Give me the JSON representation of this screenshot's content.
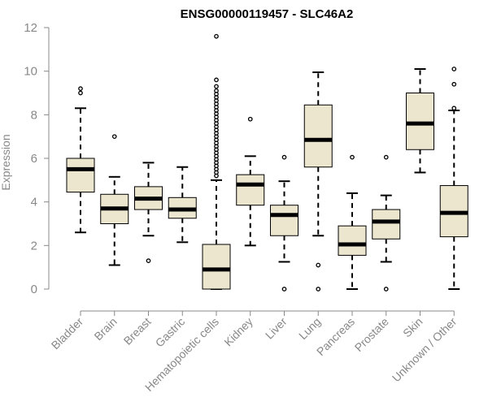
{
  "chart_data": {
    "type": "box",
    "title": "ENSG00000119457 - SLC46A2",
    "xlabel": "",
    "ylabel": "Expression",
    "ylim": [
      0,
      12
    ],
    "yticks": [
      "0",
      "2",
      "4",
      "6",
      "8",
      "10",
      "12"
    ],
    "fill_color": "#ede6cf",
    "axis_color": "#888888",
    "categories": [
      "Bladder",
      "Brain",
      "Breast",
      "Gastric",
      "Hematopoietic cells",
      "Kidney",
      "Liver",
      "Lung",
      "Pancreas",
      "Prostate",
      "Skin",
      "Unknown / Other"
    ],
    "boxes": [
      {
        "name": "Bladder",
        "min": 2.6,
        "q1": 4.45,
        "median": 5.5,
        "q3": 6.0,
        "max": 8.3,
        "outliers": [
          9.0,
          9.2
        ]
      },
      {
        "name": "Brain",
        "min": 1.1,
        "q1": 3.0,
        "median": 3.7,
        "q3": 4.35,
        "max": 5.15,
        "outliers": [
          7.0
        ]
      },
      {
        "name": "Breast",
        "min": 2.45,
        "q1": 3.65,
        "median": 4.15,
        "q3": 4.7,
        "max": 5.8,
        "outliers": [
          1.3
        ]
      },
      {
        "name": "Gastric",
        "min": 2.15,
        "q1": 3.25,
        "median": 3.65,
        "q3": 4.2,
        "max": 5.6,
        "outliers": []
      },
      {
        "name": "Hematopoietic cells",
        "min": 0.0,
        "q1": 0.0,
        "median": 0.9,
        "q3": 2.05,
        "max": 5.0,
        "outliers": [
          5.2,
          5.35,
          5.5,
          5.65,
          5.8,
          5.95,
          6.1,
          6.25,
          6.4,
          6.55,
          6.7,
          6.85,
          7.0,
          7.15,
          7.3,
          7.45,
          7.6,
          7.75,
          7.9,
          8.05,
          8.2,
          8.35,
          8.5,
          8.65,
          8.8,
          8.95,
          9.1,
          9.3,
          9.6,
          11.6
        ]
      },
      {
        "name": "Kidney",
        "min": 2.0,
        "q1": 3.85,
        "median": 4.8,
        "q3": 5.25,
        "max": 6.1,
        "outliers": [
          7.8
        ]
      },
      {
        "name": "Liver",
        "min": 1.25,
        "q1": 2.45,
        "median": 3.4,
        "q3": 3.85,
        "max": 4.95,
        "outliers": [
          6.05,
          0.0
        ]
      },
      {
        "name": "Lung",
        "min": 2.45,
        "q1": 5.6,
        "median": 6.85,
        "q3": 8.45,
        "max": 9.95,
        "outliers": [
          1.1,
          0.0
        ]
      },
      {
        "name": "Pancreas",
        "min": 0.0,
        "q1": 1.55,
        "median": 2.05,
        "q3": 2.9,
        "max": 4.4,
        "outliers": [
          6.05
        ]
      },
      {
        "name": "Prostate",
        "min": 1.25,
        "q1": 2.3,
        "median": 3.1,
        "q3": 3.65,
        "max": 4.3,
        "outliers": [
          6.05,
          0.0
        ]
      },
      {
        "name": "Skin",
        "min": 5.35,
        "q1": 6.4,
        "median": 7.6,
        "q3": 9.0,
        "max": 10.1,
        "outliers": []
      },
      {
        "name": "Unknown / Other",
        "min": 0.0,
        "q1": 2.4,
        "median": 3.5,
        "q3": 4.75,
        "max": 8.2,
        "outliers": [
          8.3,
          9.4,
          10.1
        ]
      }
    ]
  }
}
